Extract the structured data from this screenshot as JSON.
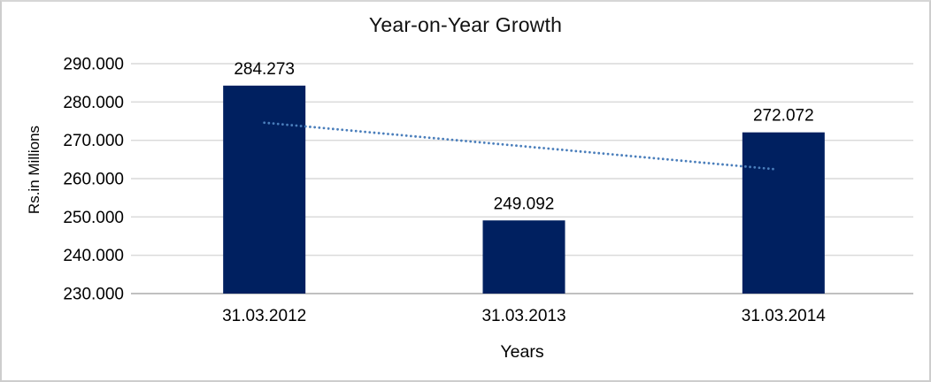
{
  "chart_data": {
    "type": "bar",
    "title": "Year-on-Year Growth",
    "xlabel": "Years",
    "ylabel": "Rs.in Millions",
    "categories": [
      "31.03.2012",
      "31.03.2013",
      "31.03.2014"
    ],
    "values": [
      284.273,
      249.092,
      272.072
    ],
    "data_labels": [
      "284.273",
      "249.092",
      "272.072"
    ],
    "y_ticks": [
      "290.000",
      "280.000",
      "270.000",
      "260.000",
      "250.000",
      "240.000",
      "230.000"
    ],
    "ylim": [
      230,
      290
    ],
    "y_tick_step": 10,
    "grid": true,
    "legend_position": "none",
    "bar_color": "#002060",
    "trendline": {
      "type": "linear",
      "style": "dotted",
      "color": "#4a7ebb",
      "start_value": 274.6,
      "end_value": 262.4
    },
    "colors": {
      "gridline": "#d9d9d9",
      "axis_line": "#b7b7b7",
      "text": "#000000",
      "border": "#cdcdcd",
      "background": "#ffffff"
    }
  }
}
